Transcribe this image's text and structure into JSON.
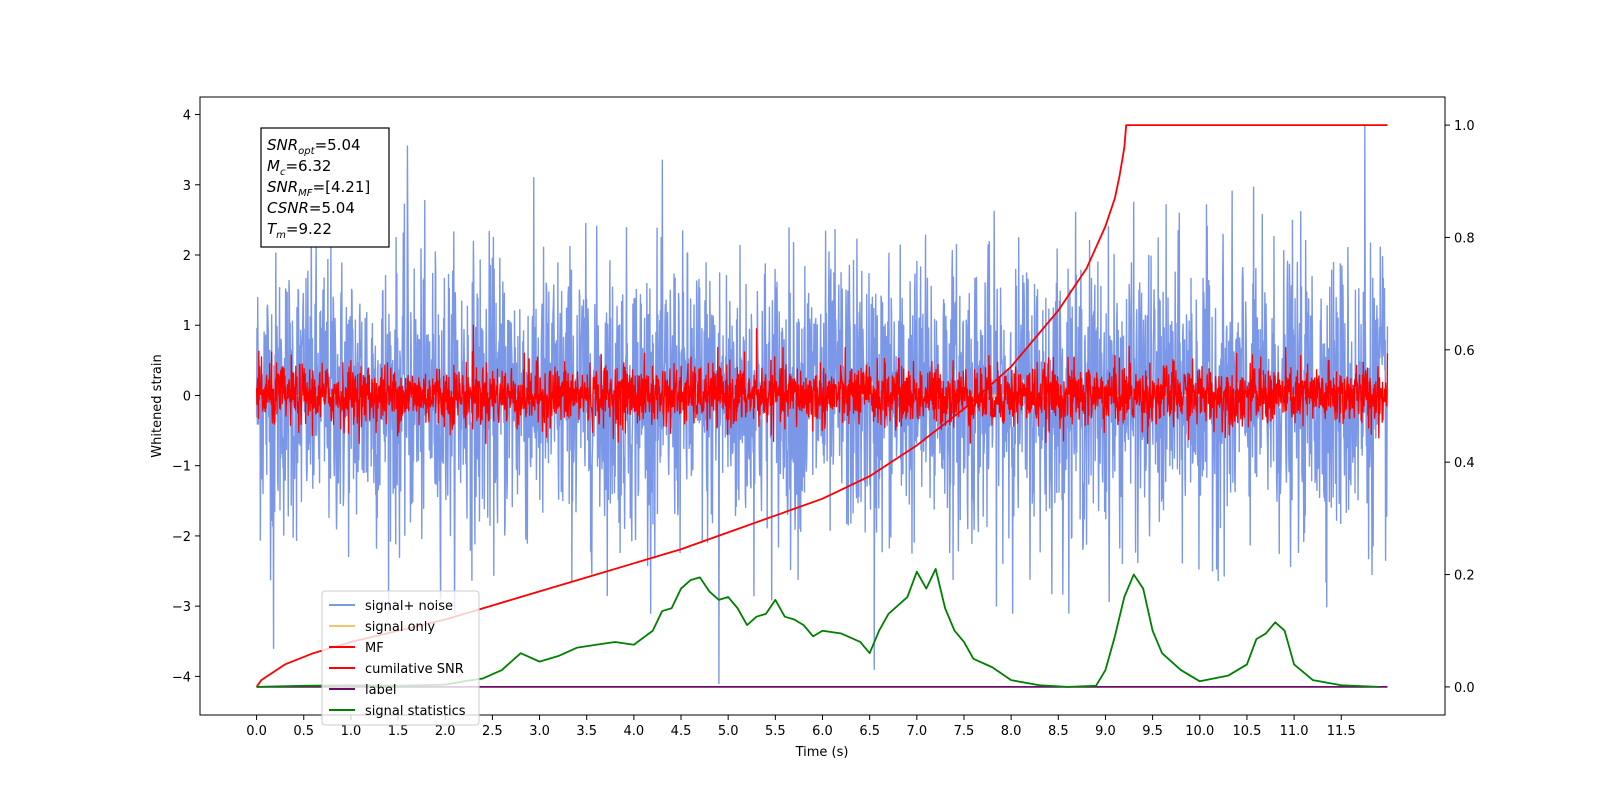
{
  "chart_data": {
    "type": "line",
    "xlabel": "Time (s)",
    "ylabel": "Whitened strain",
    "xlim": [
      -0.6,
      12.6
    ],
    "ylim": [
      -4.55,
      4.25
    ],
    "y2lim": [
      -0.05,
      1.05
    ],
    "x_ticks": [
      "0.0",
      "0.5",
      "1.0",
      "1.5",
      "2.0",
      "2.5",
      "3.0",
      "3.5",
      "4.0",
      "4.5",
      "5.0",
      "5.5",
      "6.0",
      "6.5",
      "7.0",
      "7.5",
      "8.0",
      "8.5",
      "9.0",
      "9.5",
      "10.0",
      "10.5",
      "11.0",
      "11.5"
    ],
    "y_ticks": [
      "4",
      "3",
      "2",
      "1",
      "0",
      "−1",
      "−2",
      "−3",
      "−4"
    ],
    "y2_ticks": [
      "1.0",
      "0.8",
      "0.6",
      "0.4",
      "0.2",
      "0.0"
    ],
    "grid": false,
    "legend_position": "lower-left",
    "annotation": [
      {
        "base": "SNR",
        "sub": "opt",
        "value": "=5.04"
      },
      {
        "base": "M",
        "sub": "c",
        "value": "=6.32"
      },
      {
        "base": "SNR",
        "sub": "MF",
        "value": "=[4.21]"
      },
      {
        "base": "CSNR",
        "sub": "",
        "value": "=5.04"
      },
      {
        "base": "T",
        "sub": "m",
        "value": "=9.22"
      }
    ],
    "series": [
      {
        "name": "signal+ noise",
        "axis": "left",
        "color": "#7b97e8",
        "kind": "noise",
        "x_range": [
          0,
          11.99
        ],
        "mean": 0.0,
        "std": 1.0,
        "peaks": [
          [
            1.6,
            3.55
          ],
          [
            4.3,
            3.35
          ],
          [
            11.75,
            3.85
          ],
          [
            0.18,
            -3.6
          ],
          [
            4.9,
            -4.1
          ],
          [
            6.55,
            -3.9
          ]
        ]
      },
      {
        "name": "signal only",
        "axis": "left",
        "color": "#f5c36b",
        "kind": "flat",
        "x_range": [
          0,
          11.99
        ],
        "value": 0.0
      },
      {
        "name": "MF",
        "axis": "left",
        "color": "#ff0000",
        "kind": "noise",
        "x_range": [
          0,
          11.99
        ],
        "mean": 0.0,
        "std": 0.22,
        "peaks": [
          [
            0.05,
            0.55
          ],
          [
            2.3,
            1.0
          ],
          [
            5.3,
            0.95
          ],
          [
            9.25,
            0.7
          ],
          [
            11.99,
            0.6
          ]
        ]
      },
      {
        "name": "cumilative SNR",
        "axis": "right",
        "color": "#ff0000",
        "kind": "line",
        "x": [
          0.0,
          0.05,
          0.3,
          0.6,
          1.0,
          1.5,
          2.0,
          2.5,
          3.0,
          3.5,
          4.0,
          4.5,
          5.0,
          5.5,
          6.0,
          6.5,
          7.0,
          7.5,
          8.0,
          8.5,
          8.8,
          9.0,
          9.1,
          9.15,
          9.2,
          9.22,
          11.99
        ],
        "y": [
          0.0,
          0.012,
          0.04,
          0.06,
          0.08,
          0.1,
          0.12,
          0.145,
          0.17,
          0.195,
          0.22,
          0.245,
          0.275,
          0.305,
          0.335,
          0.375,
          0.43,
          0.495,
          0.57,
          0.67,
          0.745,
          0.82,
          0.87,
          0.91,
          0.96,
          1.0,
          1.0
        ]
      },
      {
        "name": "label",
        "axis": "right",
        "color": "#6a0d6a",
        "kind": "line",
        "x": [
          0.0,
          11.99
        ],
        "y": [
          0.0,
          0.0
        ]
      },
      {
        "name": "signal statistics",
        "axis": "right",
        "color": "#008000",
        "kind": "line",
        "x": [
          0.0,
          0.5,
          1.0,
          1.5,
          2.0,
          2.2,
          2.4,
          2.6,
          2.8,
          3.0,
          3.2,
          3.4,
          3.6,
          3.8,
          4.0,
          4.2,
          4.3,
          4.4,
          4.5,
          4.6,
          4.7,
          4.8,
          4.9,
          5.0,
          5.1,
          5.2,
          5.3,
          5.4,
          5.5,
          5.6,
          5.7,
          5.8,
          5.9,
          6.0,
          6.2,
          6.4,
          6.5,
          6.6,
          6.7,
          6.8,
          6.9,
          7.0,
          7.1,
          7.2,
          7.3,
          7.4,
          7.5,
          7.6,
          7.8,
          8.0,
          8.3,
          8.6,
          8.9,
          9.0,
          9.1,
          9.2,
          9.3,
          9.4,
          9.5,
          9.6,
          9.8,
          10.0,
          10.3,
          10.5,
          10.6,
          10.7,
          10.8,
          10.9,
          11.0,
          11.2,
          11.5,
          11.9
        ],
        "y": [
          0.0,
          0.002,
          0.003,
          0.002,
          0.004,
          0.01,
          0.015,
          0.03,
          0.06,
          0.045,
          0.055,
          0.07,
          0.075,
          0.08,
          0.075,
          0.1,
          0.135,
          0.14,
          0.175,
          0.19,
          0.195,
          0.17,
          0.155,
          0.16,
          0.14,
          0.11,
          0.125,
          0.13,
          0.155,
          0.125,
          0.12,
          0.11,
          0.09,
          0.1,
          0.095,
          0.08,
          0.06,
          0.1,
          0.13,
          0.145,
          0.16,
          0.205,
          0.175,
          0.21,
          0.14,
          0.1,
          0.08,
          0.05,
          0.035,
          0.012,
          0.003,
          0.0,
          0.002,
          0.03,
          0.09,
          0.16,
          0.2,
          0.175,
          0.1,
          0.06,
          0.03,
          0.01,
          0.02,
          0.04,
          0.085,
          0.095,
          0.115,
          0.1,
          0.04,
          0.012,
          0.003,
          0.0
        ]
      }
    ]
  }
}
